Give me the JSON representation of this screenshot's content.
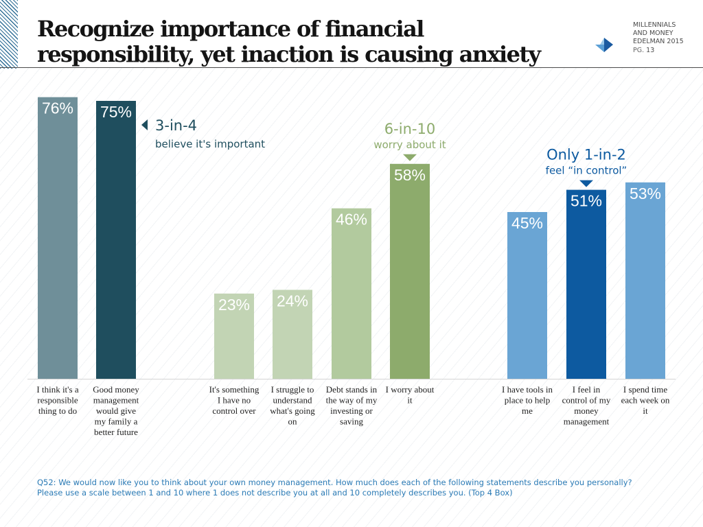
{
  "header": {
    "title_lines": [
      "Recognize importance of financial",
      "responsibility, yet inaction is causing anxiety"
    ],
    "brand_lines": [
      "MILLENNIALS",
      "AND MONEY",
      "EDELMAN 2015"
    ],
    "page_prefix": "PG.",
    "page_number": "13",
    "logo_icon": "edelman-arrow-icon"
  },
  "chart_data": {
    "type": "bar",
    "ylim": [
      0,
      100
    ],
    "categories": [
      "I think it's a responsible thing to do",
      "Good money management would give my family a better future",
      "It's something I have no control over",
      "I struggle to understand what's going on",
      "Debt stands in the way of my investing or saving",
      "I worry about it",
      "I have tools in place to help me",
      "I feel in control of my money management",
      "I spend time each week on it"
    ],
    "values": [
      76,
      75,
      23,
      24,
      46,
      58,
      45,
      51,
      53
    ],
    "value_labels": [
      "76%",
      "75%",
      "23%",
      "24%",
      "46%",
      "58%",
      "45%",
      "51%",
      "53%"
    ],
    "bar_colors": [
      "#6f8f99",
      "#1f4e5e",
      "#c2d4b4",
      "#c2d4b4",
      "#b2ca9e",
      "#8dab6c",
      "#6aa5d4",
      "#0d5aa0",
      "#6aa5d4"
    ],
    "category_label_lines": [
      [
        "I think it's a",
        "responsible",
        "thing to do"
      ],
      [
        "Good money",
        "management",
        "would give",
        "my family a",
        "better future"
      ],
      [
        "It's something",
        "I have no",
        "control over"
      ],
      [
        "I struggle to",
        "understand",
        "what's going",
        "on"
      ],
      [
        "Debt stands in",
        "the way of my",
        "investing or",
        "saving"
      ],
      [
        "I worry about",
        "it"
      ],
      [
        "I have tools in",
        "place to help",
        "me"
      ],
      [
        "I feel in",
        "control of my",
        "money",
        "management"
      ],
      [
        "I spend time",
        "each week on",
        "it"
      ]
    ],
    "annotations": [
      {
        "headline": "3-in-4",
        "subtext": "believe it's important",
        "color": "#1f4e5e",
        "points_to": 1
      },
      {
        "headline": "6-in-10",
        "subtext": "worry about it",
        "color": "#8dab6c",
        "points_to": 5
      },
      {
        "headline": "Only 1-in-2",
        "subtext": "feel “in control”",
        "color": "#0d5aa0",
        "points_to": 7
      }
    ]
  },
  "footnote": {
    "lines": [
      "Q52: We would now like you to think about your own money management. How much does each of the following statements describe you personally?",
      "Please use a scale between 1 and 10 where 1 does not describe you at all and 10 completely describes you. (Top 4 Box)"
    ]
  }
}
